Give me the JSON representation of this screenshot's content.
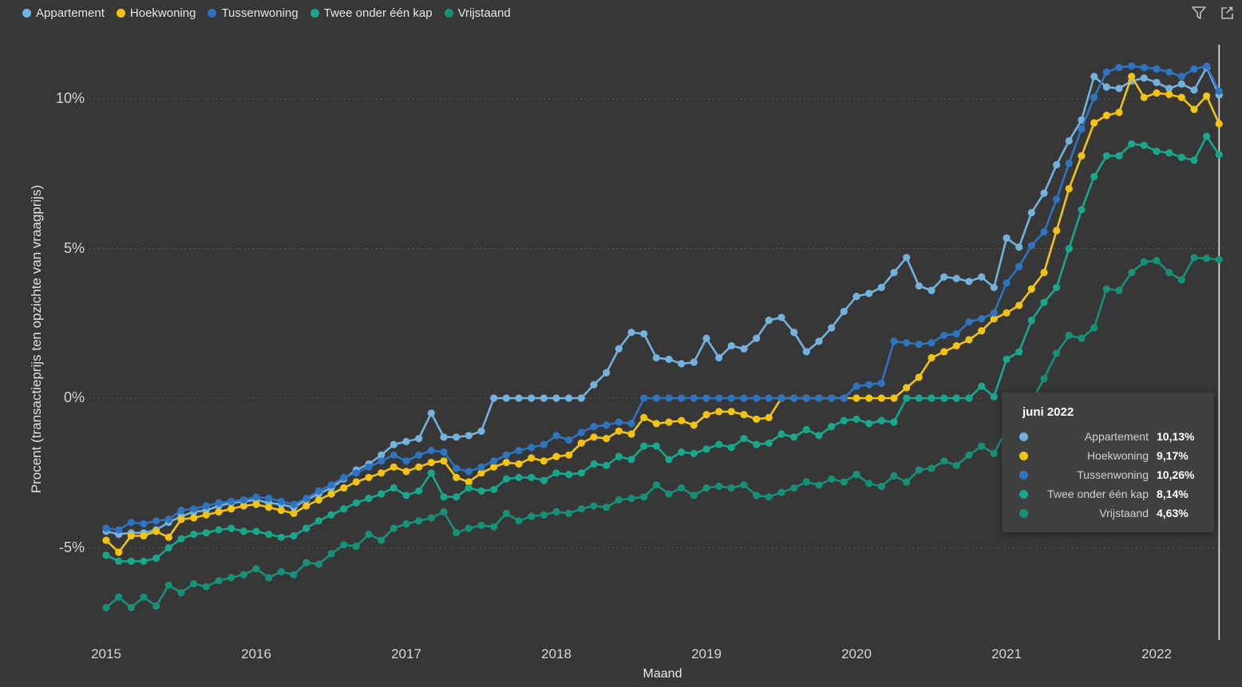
{
  "background_color": "#373737",
  "toolbar": {
    "icons": [
      {
        "name": "filter-icon"
      },
      {
        "name": "focus-mode-icon"
      }
    ]
  },
  "chart_data": {
    "type": "line",
    "title": "",
    "xlabel": "Maand",
    "ylabel": "Procent (transactieprijs ten opzichte van vraagprijs)",
    "x_start": "2015-01",
    "x_end": "2022-06",
    "x_interval": "month",
    "n_points": 90,
    "x_tick_labels": [
      "2015",
      "2016",
      "2017",
      "2018",
      "2019",
      "2020",
      "2021",
      "2022"
    ],
    "y_ticks": [
      {
        "value": 10,
        "label": "10%"
      },
      {
        "value": 5,
        "label": "5%"
      },
      {
        "value": 0,
        "label": "0%"
      },
      {
        "value": -5,
        "label": "-5%"
      }
    ],
    "ylim": [
      -7.6,
      11.7
    ],
    "grid": "dotted-horizontal",
    "legend_position": "top-left",
    "crosshair_x_index": 89,
    "crosshair_color": "#e8e8e8",
    "gridline_color": "#6a6a6a",
    "series": [
      {
        "name": "Appartement",
        "color": "#74b2de",
        "values": [
          -4.45,
          -4.55,
          -4.5,
          -4.5,
          -4.4,
          -4.15,
          -3.95,
          -3.8,
          -3.75,
          -3.6,
          -3.5,
          -3.45,
          -3.4,
          -3.5,
          -3.55,
          -3.65,
          -3.4,
          -3.2,
          -3.0,
          -2.7,
          -2.4,
          -2.2,
          -1.9,
          -1.55,
          -1.45,
          -1.35,
          -0.5,
          -1.3,
          -1.3,
          -1.25,
          -1.1,
          0,
          0,
          0,
          0,
          0,
          0,
          0,
          0,
          0.45,
          0.85,
          1.65,
          2.2,
          2.15,
          1.35,
          1.3,
          1.15,
          1.2,
          2.0,
          1.35,
          1.75,
          1.65,
          2.0,
          2.6,
          2.7,
          2.2,
          1.55,
          1.9,
          2.35,
          2.9,
          3.4,
          3.5,
          3.7,
          4.2,
          4.7,
          3.75,
          3.6,
          4.05,
          4.0,
          3.9,
          4.05,
          3.7,
          5.35,
          5.05,
          6.2,
          6.85,
          7.8,
          8.6,
          9.3,
          10.75,
          10.4,
          10.35,
          10.6,
          10.7,
          10.55,
          10.35,
          10.5,
          10.3,
          11.05,
          10.13
        ]
      },
      {
        "name": "Hoekwoning",
        "color": "#f3c314",
        "values": [
          -4.75,
          -5.15,
          -4.6,
          -4.6,
          -4.45,
          -4.65,
          -4.05,
          -4.0,
          -3.9,
          -3.8,
          -3.7,
          -3.6,
          -3.55,
          -3.65,
          -3.75,
          -3.85,
          -3.6,
          -3.4,
          -3.2,
          -3.0,
          -2.8,
          -2.65,
          -2.5,
          -2.3,
          -2.45,
          -2.3,
          -2.15,
          -2.1,
          -2.65,
          -2.8,
          -2.5,
          -2.3,
          -2.15,
          -2.2,
          -2.0,
          -2.1,
          -1.95,
          -1.9,
          -1.5,
          -1.3,
          -1.35,
          -1.1,
          -1.2,
          -0.65,
          -0.85,
          -0.8,
          -0.75,
          -0.9,
          -0.55,
          -0.45,
          -0.45,
          -0.55,
          -0.7,
          -0.65,
          0,
          0,
          0,
          0,
          0,
          0,
          0,
          0,
          0,
          0,
          0.35,
          0.7,
          1.35,
          1.55,
          1.75,
          1.95,
          2.25,
          2.65,
          2.85,
          3.1,
          3.65,
          4.2,
          5.6,
          7.0,
          8.1,
          9.2,
          9.45,
          9.55,
          10.75,
          10.05,
          10.2,
          10.15,
          10.05,
          9.65,
          10.1,
          9.17
        ]
      },
      {
        "name": "Tussenwoning",
        "color": "#2e74bf",
        "values": [
          -4.35,
          -4.4,
          -4.15,
          -4.2,
          -4.1,
          -4.05,
          -3.75,
          -3.7,
          -3.6,
          -3.5,
          -3.45,
          -3.4,
          -3.3,
          -3.35,
          -3.45,
          -3.55,
          -3.35,
          -3.1,
          -2.9,
          -2.65,
          -2.5,
          -2.3,
          -2.1,
          -1.9,
          -2.1,
          -1.9,
          -1.75,
          -1.8,
          -2.35,
          -2.45,
          -2.3,
          -2.1,
          -1.9,
          -1.75,
          -1.65,
          -1.55,
          -1.25,
          -1.4,
          -1.15,
          -0.95,
          -0.9,
          -0.8,
          -0.85,
          0,
          0,
          0,
          0,
          0,
          0,
          0,
          0,
          0,
          0,
          0,
          0,
          0,
          0,
          0,
          0,
          0,
          0.4,
          0.45,
          0.5,
          1.9,
          1.85,
          1.8,
          1.85,
          2.1,
          2.15,
          2.55,
          2.65,
          2.85,
          3.85,
          4.4,
          5.1,
          5.55,
          6.65,
          7.85,
          9.0,
          10.05,
          10.9,
          11.05,
          11.1,
          11.05,
          11.0,
          10.9,
          10.75,
          11.0,
          11.1,
          10.26
        ]
      },
      {
        "name": "Twee onder één kap",
        "color": "#19a78c",
        "values": [
          -5.25,
          -5.45,
          -5.45,
          -5.45,
          -5.35,
          -5.0,
          -4.7,
          -4.55,
          -4.5,
          -4.4,
          -4.35,
          -4.45,
          -4.45,
          -4.55,
          -4.65,
          -4.6,
          -4.35,
          -4.1,
          -3.9,
          -3.7,
          -3.5,
          -3.35,
          -3.2,
          -3.0,
          -3.25,
          -3.1,
          -2.5,
          -3.3,
          -3.3,
          -3.0,
          -3.1,
          -3.05,
          -2.7,
          -2.65,
          -2.65,
          -2.75,
          -2.5,
          -2.55,
          -2.5,
          -2.2,
          -2.25,
          -1.95,
          -2.05,
          -1.6,
          -1.6,
          -2.05,
          -1.8,
          -1.85,
          -1.7,
          -1.55,
          -1.65,
          -1.35,
          -1.55,
          -1.5,
          -1.2,
          -1.3,
          -1.05,
          -1.25,
          -0.95,
          -0.75,
          -0.7,
          -0.85,
          -0.75,
          -0.8,
          0,
          0,
          0,
          0,
          0,
          0,
          0.4,
          0.05,
          1.3,
          1.55,
          2.6,
          3.2,
          3.7,
          5.0,
          6.3,
          7.4,
          8.1,
          8.1,
          8.5,
          8.45,
          8.25,
          8.2,
          8.05,
          7.95,
          8.75,
          8.14
        ]
      },
      {
        "name": "Vrijstaand",
        "color": "#169178",
        "values": [
          -7.0,
          -6.65,
          -7.0,
          -6.65,
          -6.95,
          -6.25,
          -6.5,
          -6.2,
          -6.3,
          -6.1,
          -6.0,
          -5.9,
          -5.7,
          -6.0,
          -5.8,
          -5.9,
          -5.5,
          -5.55,
          -5.2,
          -4.9,
          -4.95,
          -4.55,
          -4.75,
          -4.35,
          -4.2,
          -4.1,
          -4.0,
          -3.8,
          -4.5,
          -4.35,
          -4.25,
          -4.3,
          -3.85,
          -4.1,
          -3.95,
          -3.9,
          -3.8,
          -3.85,
          -3.7,
          -3.6,
          -3.65,
          -3.4,
          -3.35,
          -3.3,
          -2.9,
          -3.2,
          -3.0,
          -3.25,
          -3.0,
          -2.95,
          -3.0,
          -2.9,
          -3.25,
          -3.3,
          -3.15,
          -3.0,
          -2.8,
          -2.9,
          -2.7,
          -2.8,
          -2.55,
          -2.85,
          -2.95,
          -2.6,
          -2.8,
          -2.4,
          -2.35,
          -2.1,
          -2.25,
          -1.9,
          -1.6,
          -1.85,
          -1.05,
          -0.7,
          -0.1,
          0.65,
          1.5,
          2.1,
          2.0,
          2.35,
          3.65,
          3.6,
          4.2,
          4.55,
          4.6,
          4.2,
          3.95,
          4.7,
          4.67,
          4.63
        ]
      }
    ]
  },
  "tooltip": {
    "title": "juni 2022",
    "rows": [
      {
        "label": "Appartement",
        "value": "10,13%"
      },
      {
        "label": "Hoekwoning",
        "value": "9,17%"
      },
      {
        "label": "Tussenwoning",
        "value": "10,26%"
      },
      {
        "label": "Twee onder één kap",
        "value": "8,14%"
      },
      {
        "label": "Vrijstaand",
        "value": "4,63%"
      }
    ]
  }
}
